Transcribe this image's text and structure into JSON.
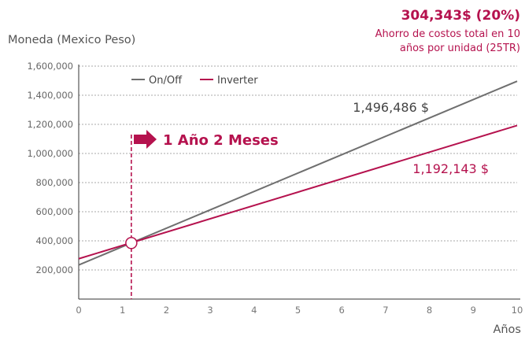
{
  "colors": {
    "onoff": "#6f6f6f",
    "inverter": "#b5124e",
    "grid": "#a8a8a8",
    "axis": "#333333"
  },
  "chart_data": {
    "type": "line",
    "ylabel": "Moneda (Mexico Peso)",
    "xlabel": "Años",
    "xlim": [
      0,
      10
    ],
    "ylim": [
      0,
      1600000
    ],
    "x_ticks": [
      "0",
      "1",
      "2",
      "3",
      "4",
      "5",
      "6",
      "7",
      "8",
      "9",
      "10"
    ],
    "x_tick_values": [
      0,
      1,
      2,
      3,
      4,
      5,
      6,
      7,
      8,
      9,
      10
    ],
    "y_ticks": [
      "200,000",
      "400,000",
      "600,000",
      "800,000",
      "1,000,000",
      "1,200,000",
      "1,400,000",
      "1,600,000"
    ],
    "y_tick_values": [
      200000,
      400000,
      600000,
      800000,
      1000000,
      1200000,
      1400000,
      1600000
    ],
    "grid": "horizontal dashed",
    "legend_position": "top-left",
    "series": [
      {
        "name": "On/Off",
        "x": [
          0,
          10
        ],
        "values": [
          234000,
          1496486
        ]
      },
      {
        "name": "Inverter",
        "x": [
          0,
          10
        ],
        "values": [
          277000,
          1192143
        ]
      }
    ],
    "annotations": {
      "headline": "304,343$ (20%)",
      "subline_1": "Ahorro de costos total en 10",
      "subline_2": "años por unidad (25TR)",
      "onoff_total": "1,496,486 $",
      "inverter_total": "1,192,143 $",
      "payback_label": "1 Año 2 Meses",
      "payback_x": 1.2,
      "payback_y": 385000
    }
  }
}
